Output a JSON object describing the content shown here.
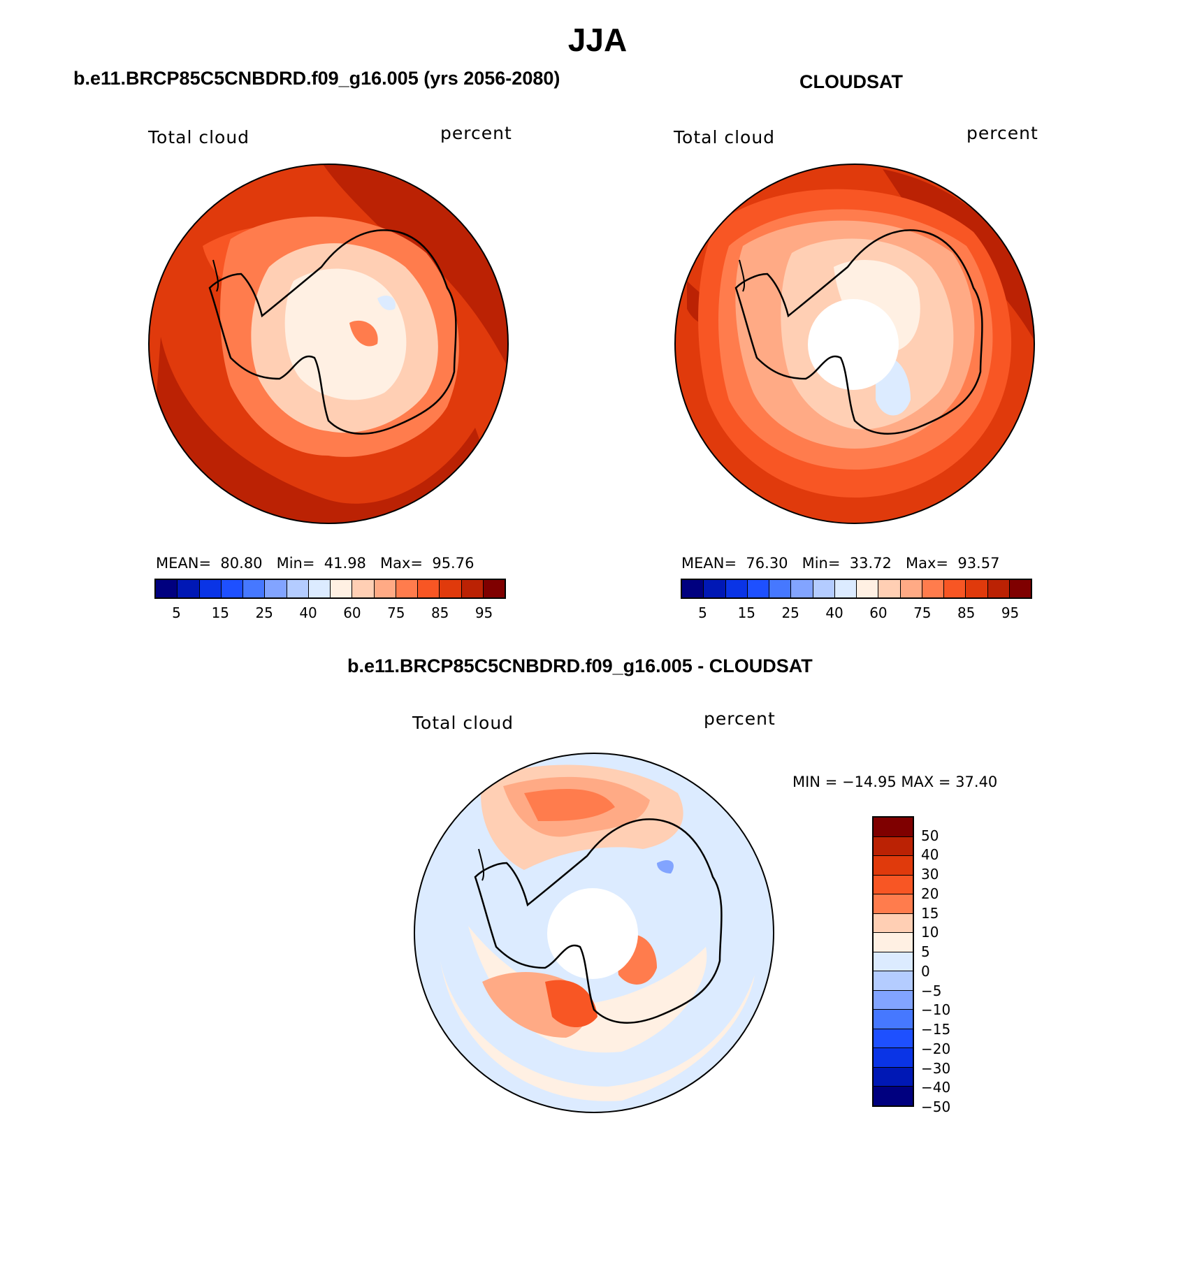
{
  "title": "JJA",
  "panels": [
    {
      "id": "model",
      "title": "b.e11.BRCP85C5CNBDRD.f09_g16.005 (yrs 2056-2080)",
      "left_label": "Total cloud",
      "right_label": "percent",
      "stats": {
        "mean_label": "MEAN=",
        "mean": "80.80",
        "min_label": "Min=",
        "min": "41.98",
        "max_label": "Max=",
        "max": "95.76"
      }
    },
    {
      "id": "obs",
      "title": "CLOUDSAT",
      "left_label": "Total cloud",
      "right_label": "percent",
      "stats": {
        "mean_label": "MEAN=",
        "mean": "76.30",
        "min_label": "Min=",
        "min": "33.72",
        "max_label": "Max=",
        "max": "93.57"
      }
    },
    {
      "id": "diff",
      "title": "b.e11.BRCP85C5CNBDRD.f09_g16.005 - CLOUDSAT",
      "left_label": "Total cloud",
      "right_label": "percent",
      "minmax": "MIN = −14.95 MAX =  37.40"
    }
  ],
  "abs_colorbar": {
    "colors": [
      "#00007f",
      "#0018b5",
      "#0a34e6",
      "#1e50ff",
      "#4678ff",
      "#82a4ff",
      "#b4ccff",
      "#dcebff",
      "#fff0e3",
      "#ffcfb4",
      "#ffaa85",
      "#ff7c4d",
      "#f85624",
      "#e03a0c",
      "#bb2204",
      "#7f0000"
    ],
    "ticks": [
      "5",
      "15",
      "25",
      "40",
      "60",
      "75",
      "85",
      "95"
    ]
  },
  "diff_colorbar": {
    "colors": [
      "#7f0000",
      "#bb2204",
      "#e03a0c",
      "#f85624",
      "#ff7c4d",
      "#ffcfb4",
      "#fff0e3",
      "#dcebff",
      "#b4ccff",
      "#82a4ff",
      "#4678ff",
      "#1e50ff",
      "#0a34e6",
      "#0018b5",
      "#00007f"
    ],
    "ticks": [
      "50",
      "40",
      "30",
      "20",
      "15",
      "10",
      "5",
      "0",
      "−5",
      "−10",
      "−15",
      "−20",
      "−30",
      "−40",
      "−50"
    ]
  }
}
